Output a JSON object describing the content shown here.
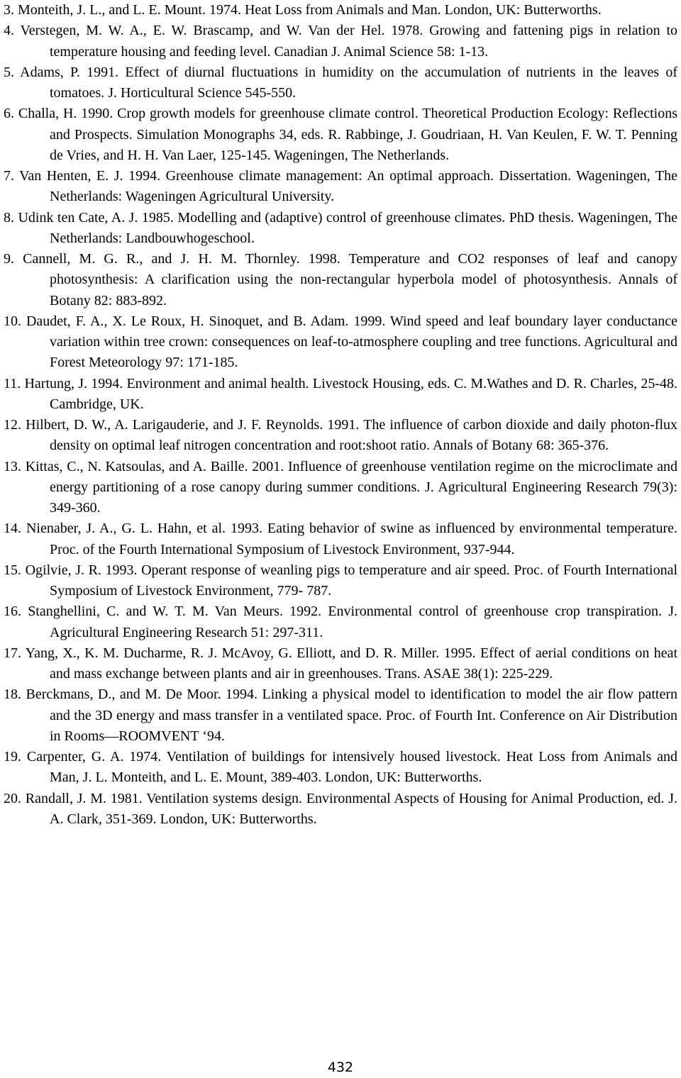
{
  "references": [
    {
      "number": "3.",
      "text": "Monteith, J. L., and L. E. Mount. 1974. Heat Loss from Animals and Man. London, UK: Butterworths."
    },
    {
      "number": "4.",
      "text": "Verstegen, M. W. A., E. W. Brascamp, and W. Van der Hel. 1978. Growing and fattening pigs in relation to temperature housing and feeding level. Canadian J. Animal Science 58: 1-13."
    },
    {
      "number": "5.",
      "text": "Adams, P. 1991. Effect of diurnal fluctuations in humidity on the accumulation of nutrients in the leaves of tomatoes. J. Horticultural Science 545-550."
    },
    {
      "number": "6.",
      "text": "Challa, H. 1990. Crop growth models for greenhouse climate control. Theoretical Production Ecology: Reflections and Prospects. Simulation Monographs 34, eds. R. Rabbinge, J. Goudriaan, H. Van Keulen, F. W. T. Penning de Vries, and H. H. Van Laer, 125-145. Wageningen, The Netherlands."
    },
    {
      "number": "7.",
      "text": "Van Henten, E. J. 1994. Greenhouse climate management: An optimal approach. Dissertation. Wageningen, The Netherlands: Wageningen Agricultural University."
    },
    {
      "number": "8.",
      "text": "Udink ten Cate, A. J. 1985. Modelling and (adaptive) control of greenhouse climates. PhD thesis. Wageningen, The Netherlands: Landbouwhogeschool."
    },
    {
      "number": "9.",
      "text": "Cannell, M. G. R., and J. H. M. Thornley. 1998. Temperature and CO2 responses of leaf and canopy photosynthesis: A clarification using the non-rectangular hyperbola model of photosynthesis. Annals of Botany 82: 883-892."
    },
    {
      "number": "10.",
      "text": "Daudet, F. A., X. Le Roux, H. Sinoquet, and B. Adam. 1999. Wind speed and leaf boundary layer conductance variation within tree crown: consequences on leaf-to-atmosphere coupling and tree functions. Agricultural and Forest Meteorology 97: 171-185."
    },
    {
      "number": "11.",
      "text": "Hartung, J. 1994. Environment and animal health. Livestock Housing, eds. C. M.Wathes and D. R. Charles, 25-48. Cambridge, UK."
    },
    {
      "number": "12.",
      "text": "Hilbert, D. W., A. Larigauderie, and J. F. Reynolds. 1991. The influence of carbon dioxide and daily photon-flux density on optimal leaf nitrogen concentration and root:shoot ratio. Annals of Botany 68: 365-376."
    },
    {
      "number": "13.",
      "text": "Kittas, C., N. Katsoulas, and A. Baille. 2001. Influence of greenhouse ventilation regime on the microclimate and energy partitioning of a rose canopy during summer conditions. J. Agricultural Engineering Research 79(3): 349-360."
    },
    {
      "number": "14.",
      "text": "Nienaber, J. A., G. L. Hahn, et al. 1993. Eating behavior of swine as influenced by environmental temperature. Proc. of the Fourth International Symposium of Livestock Environment, 937-944."
    },
    {
      "number": "15.",
      "text": "Ogilvie, J. R. 1993. Operant response of weanling pigs to temperature and air speed. Proc. of Fourth International Symposium of Livestock Environment, 779- 787."
    },
    {
      "number": "16.",
      "text": "Stanghellini, C. and W. T. M. Van Meurs. 1992. Environmental control of greenhouse crop transpiration. J. Agricultural Engineering Research 51: 297-311."
    },
    {
      "number": "17.",
      "text": "Yang, X., K. M. Ducharme, R. J. McAvoy, G. Elliott, and D. R. Miller. 1995. Effect of aerial conditions on heat and mass exchange between plants and air in greenhouses. Trans. ASAE 38(1): 225-229."
    },
    {
      "number": "18.",
      "text": "Berckmans, D., and M. De Moor. 1994. Linking a physical model to identification to model the air flow pattern and the 3D energy and mass transfer in a ventilated space. Proc. of Fourth Int. Conference on Air Distribution in Rooms—ROOMVENT ‘94."
    },
    {
      "number": "19.",
      "text": "Carpenter, G. A. 1974. Ventilation of buildings for intensively housed livestock. Heat Loss from Animals and Man, J. L. Monteith, and L. E. Mount, 389-403. London, UK: Butterworths."
    },
    {
      "number": "20.",
      "text": "Randall, J. M. 1981. Ventilation systems design. Environmental Aspects of Housing for Animal Production, ed. J. A. Clark, 351-369. London, UK: Butterworths."
    }
  ],
  "page_number": "432"
}
